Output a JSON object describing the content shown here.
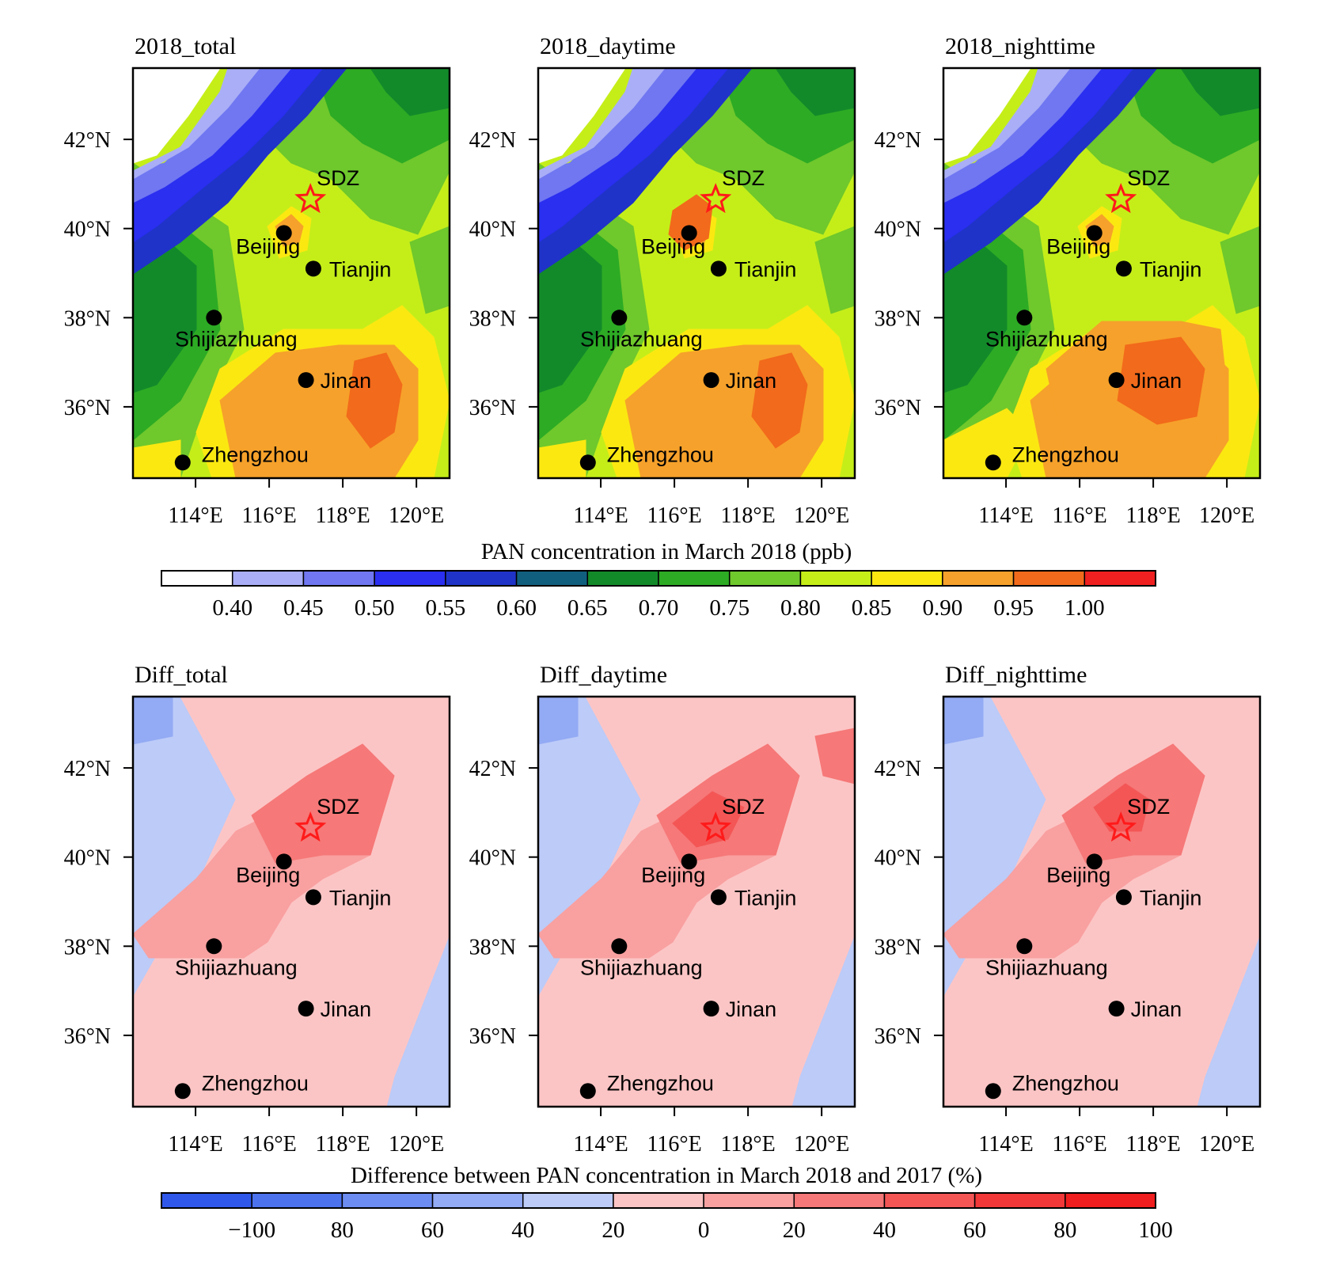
{
  "figure": {
    "row1": {
      "panels": [
        {
          "title": "2018_total",
          "variant": "total"
        },
        {
          "title": "2018_daytime",
          "variant": "day"
        },
        {
          "title": "2018_nighttime",
          "variant": "night"
        }
      ],
      "colorbar": {
        "title": "PAN concentration in March 2018 (ppb)",
        "colors": [
          "#ffffff",
          "#a9aef6",
          "#7077f1",
          "#2a2ff0",
          "#1f33c8",
          "#115f7f",
          "#138a2a",
          "#2dab24",
          "#6fc82c",
          "#c5ee19",
          "#fbe811",
          "#f6a12b",
          "#f26a1b",
          "#f02020"
        ],
        "tick_labels": [
          "0.40",
          "0.45",
          "0.50",
          "0.55",
          "0.60",
          "0.65",
          "0.70",
          "0.75",
          "0.80",
          "0.85",
          "0.90",
          "0.95",
          "1.00"
        ]
      }
    },
    "row2": {
      "panels": [
        {
          "title": "Diff_total",
          "variant": "total"
        },
        {
          "title": "Diff_daytime",
          "variant": "day"
        },
        {
          "title": "Diff_nighttime",
          "variant": "night"
        }
      ],
      "colorbar": {
        "title": "Difference between PAN concentration in March 2018 and 2017 (%)",
        "colors": [
          "#2f58ea",
          "#4c72ee",
          "#6d8cf1",
          "#93aaf4",
          "#bccbf8",
          "#fcc5c5",
          "#f9a0a0",
          "#f67878",
          "#f45656",
          "#f23838",
          "#f01e1e"
        ],
        "tick_labels": [
          "−100",
          "80",
          "60",
          "40",
          "20",
          "0",
          "20",
          "40",
          "60",
          "80",
          "100"
        ]
      }
    },
    "axes": {
      "lat_labels": [
        "42°N",
        "40°N",
        "38°N",
        "36°N"
      ],
      "lat_values": [
        42,
        40,
        38,
        36
      ],
      "lon_labels": [
        "114°E",
        "116°E",
        "118°E",
        "120°E"
      ],
      "lon_values": [
        114,
        116,
        118,
        120
      ],
      "lon_range": [
        112.3,
        120.9
      ],
      "lat_range": [
        34.4,
        43.6
      ]
    },
    "sites": [
      {
        "name": "SDZ",
        "lon": 117.12,
        "lat": 40.65,
        "marker": "star"
      },
      {
        "name": "Beijing",
        "lon": 116.4,
        "lat": 39.9,
        "marker": "dot"
      },
      {
        "name": "Tianjin",
        "lon": 117.2,
        "lat": 39.1,
        "marker": "dot"
      },
      {
        "name": "Shijiazhuang",
        "lon": 114.5,
        "lat": 38.0,
        "marker": "dot"
      },
      {
        "name": "Jinan",
        "lon": 117.0,
        "lat": 36.6,
        "marker": "dot"
      },
      {
        "name": "Zhengzhou",
        "lon": 113.65,
        "lat": 34.75,
        "marker": "dot"
      }
    ],
    "colors": {
      "star_outline": "#ff1a1a",
      "dot": "#000000"
    }
  }
}
